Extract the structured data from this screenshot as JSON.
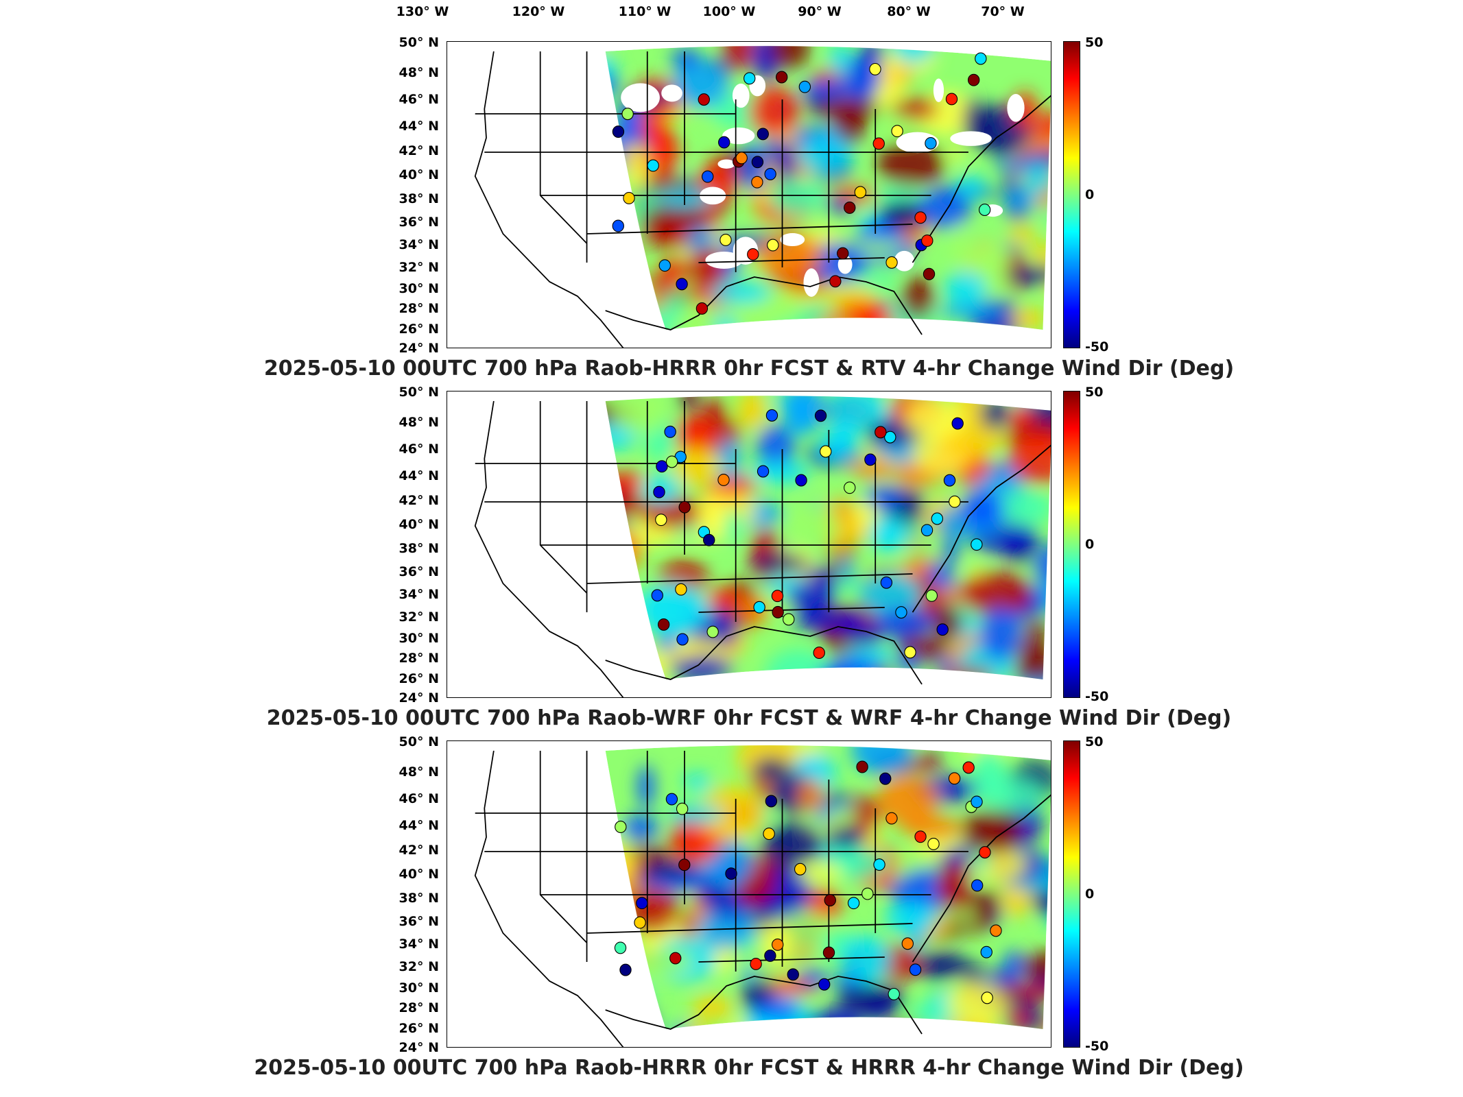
{
  "longitude_labels": [
    "130° W",
    "120° W",
    "110° W",
    "100° W",
    "90° W",
    "80° W",
    "70° W"
  ],
  "latitude_labels": [
    "50° N",
    "48° N",
    "46° N",
    "44° N",
    "42° N",
    "40° N",
    "38° N",
    "36° N",
    "34° N",
    "32° N",
    "30° N",
    "28° N",
    "26° N",
    "24° N"
  ],
  "colorbar": {
    "max_label": "50",
    "mid_label": "0",
    "min_label": "-50"
  },
  "panels": [
    {
      "title": "2025-05-10 00UTC 700 hPa Raob-HRRR 0hr FCST & RTV 4-hr Change Wind Dir (Deg)"
    },
    {
      "title": "2025-05-10 00UTC 700 hPa Raob-WRF 0hr FCST & WRF 4-hr Change Wind Dir (Deg)"
    },
    {
      "title": "2025-05-10 00UTC 700 hPa Raob-HRRR 0hr FCST & HRRR 4-hr Change Wind Dir (Deg)"
    }
  ],
  "colors": {
    "max": "#800000",
    "zero": "#80ff80",
    "min": "#000080"
  }
}
